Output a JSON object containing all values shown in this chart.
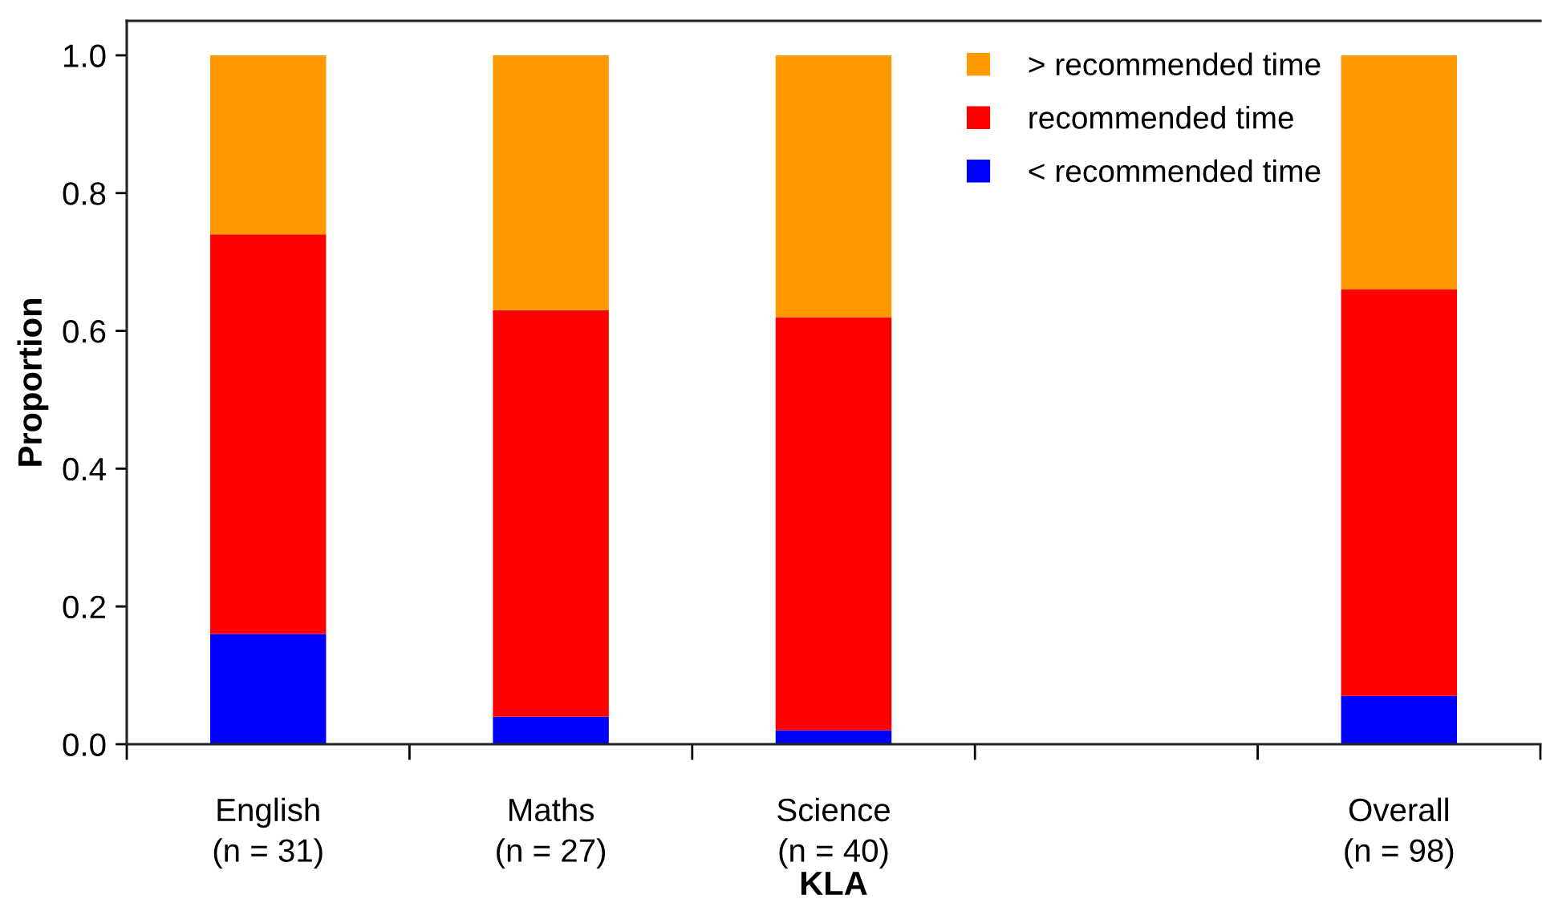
{
  "chart_data": {
    "type": "bar",
    "stacked": true,
    "xlabel": "KLA",
    "ylabel": "Proportion",
    "categories": [
      "English\n(n = 31)",
      "Maths\n(n = 27)",
      "Science\n(n = 40)",
      null,
      "Overall\n(n = 98)"
    ],
    "series": [
      {
        "name": "< recommended time",
        "color": "#0000ff",
        "values": [
          0.16,
          0.04,
          0.02,
          null,
          0.07
        ]
      },
      {
        "name": "recommended time",
        "color": "#ff0000",
        "values": [
          0.58,
          0.59,
          0.6,
          null,
          0.59
        ]
      },
      {
        "name": "> recommended time",
        "color": "#ff9900",
        "values": [
          0.26,
          0.37,
          0.38,
          null,
          0.34
        ]
      }
    ],
    "ylim": [
      0,
      1.05
    ],
    "yticks": [
      {
        "value": 0,
        "label": "0.0"
      },
      {
        "value": 0.2,
        "label": "0.2"
      },
      {
        "value": 0.4,
        "label": "0.4"
      },
      {
        "value": 0.6,
        "label": "0.6"
      },
      {
        "value": 0.8,
        "label": "0.8"
      },
      {
        "value": 1,
        "label": "1.0"
      }
    ],
    "legend": "top right"
  }
}
